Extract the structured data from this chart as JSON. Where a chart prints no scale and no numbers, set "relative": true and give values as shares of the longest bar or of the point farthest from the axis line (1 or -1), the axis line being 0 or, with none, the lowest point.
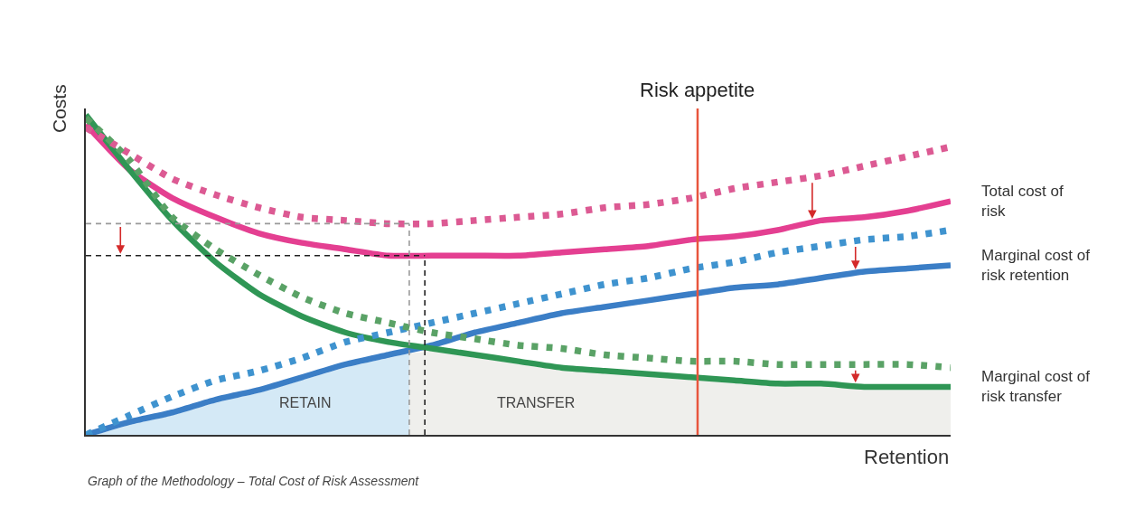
{
  "chart_data": {
    "type": "line",
    "relative": true,
    "ylabel": "Costs",
    "xlabel": "Retention",
    "categories": [
      null,
      null,
      null,
      null,
      null,
      null,
      null,
      null,
      null,
      null,
      null,
      null,
      null,
      null,
      null,
      null,
      null,
      null,
      null,
      null,
      null
    ],
    "series": [
      {
        "name": "Total cost of risk",
        "color": "#e43f91",
        "line_style": "solid",
        "values": [
          0.97,
          0.83,
          0.74,
          0.68,
          0.63,
          0.6,
          0.58,
          0.56,
          0.56,
          0.56,
          0.56,
          0.57,
          0.58,
          0.59,
          0.61,
          0.62,
          0.64,
          0.67,
          0.68,
          0.7,
          0.73
        ]
      },
      {
        "color": "#dc5a93",
        "line_style": "dotted",
        "values": [
          0.96,
          0.88,
          0.8,
          0.75,
          0.71,
          0.68,
          0.67,
          0.66,
          0.66,
          0.67,
          0.68,
          0.69,
          0.71,
          0.72,
          0.74,
          0.77,
          0.79,
          0.81,
          0.84,
          0.87,
          0.9
        ]
      },
      {
        "name": "Marginal cost of risk retention",
        "color": "#3b7ec6",
        "line_style": "solid",
        "values": [
          0,
          0.04,
          0.07,
          0.11,
          0.14,
          0.18,
          0.22,
          0.25,
          0.28,
          0.32,
          0.35,
          0.38,
          0.4,
          0.42,
          0.44,
          0.46,
          0.47,
          0.49,
          0.51,
          0.52,
          0.53
        ]
      },
      {
        "color": "#3f93cf",
        "line_style": "dotted",
        "values": [
          0,
          0.06,
          0.12,
          0.17,
          0.2,
          0.24,
          0.29,
          0.32,
          0.35,
          0.38,
          0.41,
          0.44,
          0.47,
          0.49,
          0.52,
          0.54,
          0.57,
          0.59,
          0.61,
          0.62,
          0.64
        ]
      },
      {
        "name": "Marginal cost of risk transfer",
        "color": "#2f9655",
        "line_style": "solid",
        "values": [
          1,
          0.83,
          0.67,
          0.54,
          0.44,
          0.37,
          0.32,
          0.29,
          0.27,
          0.25,
          0.23,
          0.21,
          0.2,
          0.19,
          0.18,
          0.17,
          0.16,
          0.16,
          0.15,
          0.15,
          0.15
        ]
      },
      {
        "color": "#5aa266",
        "line_style": "dotted",
        "values": [
          0.99,
          0.86,
          0.68,
          0.58,
          0.5,
          0.43,
          0.38,
          0.35,
          0.32,
          0.3,
          0.28,
          0.27,
          0.25,
          0.24,
          0.23,
          0.23,
          0.22,
          0.22,
          0.22,
          0.22,
          0.21
        ]
      }
    ],
    "ref_lines": [
      {
        "axis": "y",
        "value": 0.66,
        "color": "#9a9a9a",
        "line_style": "dashed"
      },
      {
        "axis": "y",
        "value": 0.56,
        "color": "#222222",
        "line_style": "dashed"
      }
    ],
    "annotations": [
      "Risk appetite",
      "RETAIN",
      "TRANSFER",
      "Graph of the Methodology – Total Cost of Risk Assessment"
    ]
  }
}
